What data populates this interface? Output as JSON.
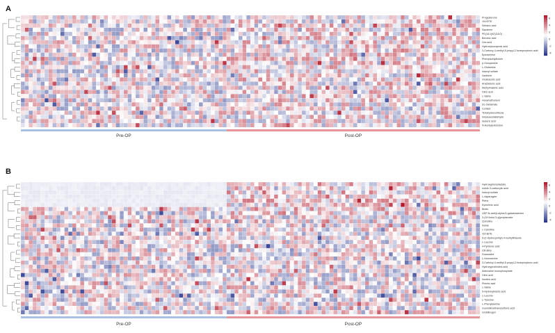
{
  "chart_data": [
    {
      "type": "heatmap",
      "panel_label": "A",
      "groups": [
        "Pre-OP",
        "Post-OP"
      ],
      "group_colors": [
        "#a9bfe3",
        "#e79598"
      ],
      "color_scale": {
        "low": "#1f2f8a",
        "mid": "#ffffff",
        "high": "#b2182b"
      },
      "legend_ticks": [
        "6",
        "4",
        "2",
        "0",
        "-2",
        "-4"
      ],
      "rows": [
        "Progesterone",
        "15-KETE",
        "Sebacic acid",
        "Squalene",
        "PE(16:1(9Z)/18:0)",
        "Benzoic acid",
        "Uric acid",
        "Hydroxyisocaproic acid",
        "3-Carboxy-4-methyl-5-propyl-2-furanpropionic acid",
        "Epinephrine",
        "Phenylacetylindole",
        "p-Octopamine",
        "L-Glutamine",
        "Indoxyl sulfate",
        "Xanthine",
        "Oxaloacetic acid",
        "Arachidonic acid",
        "Methylmalonic acid",
        "Citric acid",
        "L-Valine",
        "Hexamethonium",
        "DL-Glutamate",
        "Cortisol",
        "Tetrahydrocortisone",
        "Indoleacetaldehyde",
        "Suberic acid",
        "N-Acetylputrescine"
      ]
    },
    {
      "type": "heatmap",
      "panel_label": "B",
      "groups": [
        "Pre-OP",
        "Post-OP"
      ],
      "group_colors": [
        "#a9bfe3",
        "#e79598"
      ],
      "color_scale": {
        "low": "#1f2f8a",
        "mid": "#ffffff",
        "high": "#b2182b"
      },
      "legend_ticks": [
        "6",
        "4",
        "2",
        "0",
        "-2",
        "-4"
      ],
      "rows": [
        "Hydroxyphenyllactate",
        "Indole-3-carboxylic acid",
        "Indoxyl sulfate",
        "L-Asparagine",
        "Pterin",
        "Kynurenic acid",
        "Biotin",
        "UDP-N-acetyl-alpha-D-galactosamine",
        "3-(1H-Indol-3-yl)propanoate",
        "Quinoline",
        "Indole",
        "L-Carnitine",
        "15-HETE",
        "5-(2-Hydroxyethyl)-4-methylthiazole",
        "L-Leucine",
        "4-Pyridoxic acid",
        "Citrulline",
        "Guanosine",
        "L-Homoserine",
        "3-Carboxy-4-methyl-5-propyl-2-furanpropionic acid",
        "Hydroxyprolinoleic acid",
        "Adenosine monophosphate",
        "Citric acid",
        "Isocitric acid",
        "Pimelic acid",
        "L-Valine",
        "5-Hydroxyindolic acid",
        "L-Leucine",
        "L-Tyrosine",
        "L-Phenylalanine",
        "Guanidinoethanesulfonic acid",
        "Urobilinogen"
      ]
    }
  ]
}
